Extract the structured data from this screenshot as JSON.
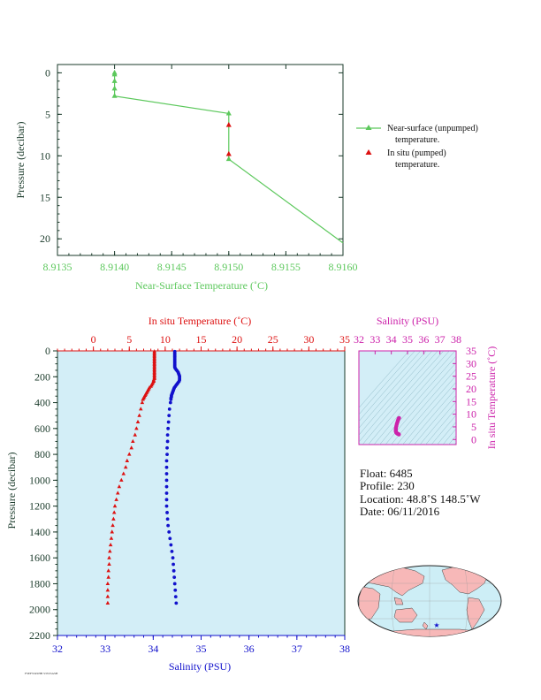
{
  "colors": {
    "green": "#5cc85c",
    "red": "#dd1111",
    "blue": "#1111cc",
    "magenta": "#cc22aa",
    "axis_dark": "#1a3a2a",
    "panel_fill": "#d3eef7",
    "land": "#f7b8b8",
    "ocean": "#cdeef6"
  },
  "float_info": {
    "float": "Float:  6485",
    "profile": "Profile:  230",
    "location": "Location:  48.8˚S  148.5˚W",
    "date": "Date:  06/11/2016"
  },
  "footer_tiny": "FSEFS54SHB S3SS5ASH",
  "chart_data": [
    {
      "id": "near_surface",
      "type": "line",
      "xlabel": "Near-Surface Temperature (˚C)",
      "ylabel": "Pressure (decibar)",
      "xlim": [
        8.9135,
        8.916
      ],
      "ylim": [
        22,
        -1
      ],
      "xticks": [
        "8.9135",
        "8.9140",
        "8.9145",
        "8.9150",
        "8.9155",
        "8.9160"
      ],
      "yticks": [
        "0",
        "5",
        "10",
        "15",
        "20"
      ],
      "legend": [
        {
          "line1": "Near-surface (unpumped)",
          "line2": "temperature.",
          "marker": "triangle-line",
          "color": "green"
        },
        {
          "line1": "In situ (pumped)",
          "line2": "temperature.",
          "marker": "triangle",
          "color": "red"
        }
      ],
      "legend_position": "right",
      "series": [
        {
          "name": "Near-surface (unpumped) temperature.",
          "marker": "triangle",
          "color": "green",
          "points": [
            [
              8.914,
              0.0
            ],
            [
              8.914,
              0.2
            ],
            [
              8.914,
              1.0
            ],
            [
              8.914,
              1.9
            ],
            [
              8.914,
              2.8
            ],
            [
              8.915,
              4.9
            ],
            [
              8.915,
              10.4
            ],
            [
              8.916,
              20.5
            ]
          ]
        },
        {
          "name": "In situ (pumped) temperature.",
          "marker": "triangle",
          "color": "red",
          "points": [
            [
              8.915,
              6.3
            ],
            [
              8.915,
              9.8
            ]
          ]
        }
      ]
    },
    {
      "id": "profile",
      "type": "scatter",
      "top_xlabel": "In situ Temperature (˚C)",
      "bottom_xlabel": "Salinity (PSU)",
      "ylabel": "Pressure (decibar)",
      "temp_lim": [
        -5,
        35
      ],
      "temp_ticks": [
        "0",
        "5",
        "10",
        "15",
        "20",
        "25",
        "30",
        "35"
      ],
      "sal_lim": [
        32,
        38
      ],
      "sal_ticks": [
        "32",
        "33",
        "34",
        "35",
        "36",
        "37",
        "38"
      ],
      "ylim": [
        2200,
        0
      ],
      "yticks": [
        "0",
        "200",
        "400",
        "600",
        "800",
        "1000",
        "1200",
        "1400",
        "1600",
        "1800",
        "2000",
        "2200"
      ],
      "temperature": {
        "pressure": [
          5,
          15,
          25,
          35,
          45,
          55,
          65,
          75,
          85,
          95,
          105,
          115,
          125,
          135,
          145,
          155,
          165,
          175,
          185,
          195,
          205,
          215,
          225,
          235,
          245,
          255,
          265,
          275,
          285,
          295,
          305,
          315,
          325,
          335,
          345,
          355,
          365,
          375,
          400,
          450,
          500,
          550,
          600,
          650,
          700,
          750,
          800,
          850,
          900,
          950,
          1000,
          1050,
          1100,
          1150,
          1200,
          1250,
          1300,
          1350,
          1400,
          1450,
          1500,
          1550,
          1600,
          1650,
          1700,
          1750,
          1800,
          1850,
          1900,
          1950
        ],
        "values": [
          8.5,
          8.5,
          8.5,
          8.5,
          8.5,
          8.5,
          8.5,
          8.5,
          8.5,
          8.5,
          8.5,
          8.5,
          8.5,
          8.5,
          8.5,
          8.5,
          8.5,
          8.5,
          8.5,
          8.5,
          8.5,
          8.5,
          8.4,
          8.4,
          8.3,
          8.2,
          8.1,
          8.0,
          7.8,
          7.7,
          7.6,
          7.5,
          7.4,
          7.3,
          7.2,
          7.1,
          7.0,
          6.9,
          6.8,
          6.6,
          6.4,
          6.2,
          6.0,
          5.8,
          5.5,
          5.3,
          5.0,
          4.7,
          4.5,
          4.2,
          3.9,
          3.6,
          3.4,
          3.2,
          3.0,
          2.9,
          2.8,
          2.7,
          2.6,
          2.5,
          2.4,
          2.3,
          2.2,
          2.2,
          2.1,
          2.1,
          2.0,
          2.0,
          2.0,
          2.0
        ]
      },
      "salinity": {
        "pressure": [
          5,
          15,
          25,
          35,
          45,
          55,
          65,
          75,
          85,
          95,
          105,
          115,
          125,
          135,
          145,
          155,
          165,
          175,
          185,
          195,
          205,
          215,
          225,
          235,
          245,
          255,
          265,
          275,
          285,
          295,
          305,
          315,
          325,
          335,
          345,
          355,
          365,
          375,
          400,
          450,
          500,
          550,
          600,
          650,
          700,
          750,
          800,
          850,
          900,
          950,
          1000,
          1050,
          1100,
          1150,
          1200,
          1250,
          1300,
          1350,
          1400,
          1450,
          1500,
          1550,
          1600,
          1650,
          1700,
          1750,
          1800,
          1850,
          1900,
          1950
        ],
        "values": [
          34.45,
          34.45,
          34.45,
          34.45,
          34.45,
          34.45,
          34.45,
          34.45,
          34.45,
          34.45,
          34.45,
          34.45,
          34.45,
          34.46,
          34.48,
          34.5,
          34.52,
          34.53,
          34.54,
          34.55,
          34.55,
          34.55,
          34.55,
          34.54,
          34.52,
          34.5,
          34.48,
          34.46,
          34.44,
          34.43,
          34.42,
          34.41,
          34.4,
          34.39,
          34.38,
          34.38,
          34.37,
          34.37,
          34.36,
          34.34,
          34.33,
          34.32,
          34.31,
          34.3,
          34.3,
          34.29,
          34.29,
          34.28,
          34.28,
          34.28,
          34.28,
          34.28,
          34.28,
          34.28,
          34.28,
          34.29,
          34.3,
          34.31,
          34.33,
          34.35,
          34.37,
          34.39,
          34.41,
          34.42,
          34.43,
          34.44,
          34.45,
          34.46,
          34.47,
          34.48
        ]
      }
    },
    {
      "id": "ts_inset",
      "type": "scatter",
      "top_xlabel": "Salinity (PSU)",
      "right_ylabel": "In situ Temperature (˚C)",
      "sal_lim": [
        32,
        38
      ],
      "sal_ticks": [
        "32",
        "33",
        "34",
        "35",
        "36",
        "37",
        "38"
      ],
      "temp_lim": [
        -2,
        35
      ],
      "temp_ticks": [
        "0",
        "5",
        "10",
        "15",
        "20",
        "25",
        "30",
        "35"
      ],
      "salinity": [
        34.48,
        34.45,
        34.43,
        34.4,
        34.38,
        34.35,
        34.33,
        34.31,
        34.29,
        34.28,
        34.28,
        34.28,
        34.29,
        34.31,
        34.34,
        34.38,
        34.42,
        34.45,
        34.47
      ],
      "temperature": [
        8.5,
        8.3,
        7.9,
        7.4,
        6.9,
        6.4,
        5.9,
        5.3,
        4.7,
        4.2,
        3.7,
        3.3,
        3.0,
        2.7,
        2.5,
        2.3,
        2.2,
        2.1,
        2.0
      ]
    }
  ],
  "map": {
    "marker_symbol": "★"
  }
}
